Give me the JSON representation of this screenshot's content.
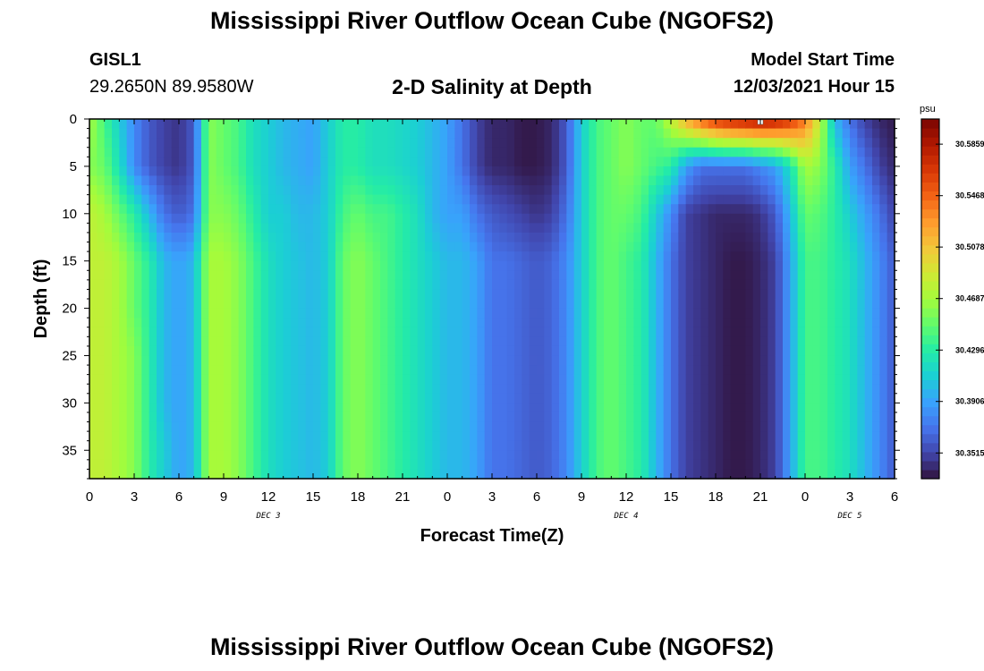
{
  "page": {
    "title_top": "Mississippi River Outflow Ocean Cube (NGOFS2)",
    "title_bottom": "Mississippi River Outflow Ocean Cube (NGOFS2)",
    "station_id": "GISL1",
    "station_coords": "29.2650N  89.9580W",
    "subtitle": "2-D Salinity at Depth",
    "model_start_label": "Model Start Time",
    "model_start_value": "12/03/2021 Hour 15"
  },
  "chart_data": {
    "type": "heatmap",
    "title": "2-D Salinity at Depth",
    "xlabel": "Forecast Time(Z)",
    "ylabel": "Depth (ft)",
    "colorbar_unit": "psu",
    "x_range_hours": [
      0,
      54
    ],
    "y_range_ft": [
      0,
      38
    ],
    "y_inverted": true,
    "x_ticks": [
      {
        "h": 0,
        "label": "0"
      },
      {
        "h": 3,
        "label": "3"
      },
      {
        "h": 6,
        "label": "6"
      },
      {
        "h": 9,
        "label": "9"
      },
      {
        "h": 12,
        "label": "12"
      },
      {
        "h": 15,
        "label": "15"
      },
      {
        "h": 18,
        "label": "18"
      },
      {
        "h": 21,
        "label": "21"
      },
      {
        "h": 24,
        "label": "0"
      },
      {
        "h": 27,
        "label": "3"
      },
      {
        "h": 30,
        "label": "6"
      },
      {
        "h": 33,
        "label": "9"
      },
      {
        "h": 36,
        "label": "12"
      },
      {
        "h": 39,
        "label": "15"
      },
      {
        "h": 42,
        "label": "18"
      },
      {
        "h": 45,
        "label": "21"
      },
      {
        "h": 48,
        "label": "0"
      },
      {
        "h": 51,
        "label": "3"
      },
      {
        "h": 54,
        "label": "6"
      }
    ],
    "y_ticks": [
      0,
      5,
      10,
      15,
      20,
      25,
      30,
      35
    ],
    "day_labels": [
      {
        "h": 12,
        "label": "DEC 3"
      },
      {
        "h": 36,
        "label": "DEC 4"
      },
      {
        "h": 51,
        "label": "DEC 5"
      }
    ],
    "colorbar_ticks": [
      30.5859,
      30.5468,
      30.5078,
      30.4687,
      30.4296,
      30.3906,
      30.3515
    ],
    "colorbar_range": [
      30.332,
      30.605
    ],
    "colormap": [
      "#30123b",
      "#4145ab",
      "#4675ed",
      "#39a2fc",
      "#1bcfd4",
      "#24eca6",
      "#61fc6c",
      "#a4fc3b",
      "#d1e834",
      "#f3c63a",
      "#fe9b2d",
      "#f36315",
      "#d93806",
      "#b11901",
      "#7a0402"
    ],
    "marker": {
      "h": 45,
      "depth": 0
    },
    "profile_hours": [
      0,
      1,
      2,
      3,
      4,
      5,
      6,
      7,
      8,
      9,
      10,
      11,
      12,
      13,
      14,
      15,
      16,
      17,
      18,
      19,
      20,
      21,
      22,
      23,
      24,
      25,
      26,
      27,
      28,
      29,
      30,
      31,
      32,
      33,
      34,
      35,
      36,
      37,
      38,
      39,
      40,
      41,
      42,
      43,
      44,
      45,
      46,
      47,
      48,
      49,
      50,
      51,
      52,
      53,
      54
    ],
    "profile_depths_ft": [
      0,
      5,
      10,
      15,
      20,
      25,
      30,
      35,
      38
    ],
    "salinity_psu": [
      [
        30.47,
        30.46,
        30.48,
        30.48,
        30.48,
        30.48,
        30.48,
        30.48,
        30.48
      ],
      [
        30.44,
        30.45,
        30.47,
        30.48,
        30.48,
        30.48,
        30.48,
        30.48,
        30.48
      ],
      [
        30.41,
        30.42,
        30.45,
        30.47,
        30.47,
        30.47,
        30.47,
        30.47,
        30.47
      ],
      [
        30.38,
        30.38,
        30.43,
        30.45,
        30.45,
        30.46,
        30.46,
        30.46,
        30.46
      ],
      [
        30.36,
        30.36,
        30.4,
        30.43,
        30.43,
        30.43,
        30.43,
        30.43,
        30.43
      ],
      [
        30.35,
        30.35,
        30.37,
        30.4,
        30.4,
        30.4,
        30.4,
        30.41,
        30.41
      ],
      [
        30.345,
        30.345,
        30.36,
        30.39,
        30.39,
        30.39,
        30.39,
        30.39,
        30.39
      ],
      [
        30.36,
        30.36,
        30.37,
        30.4,
        30.4,
        30.4,
        30.4,
        30.4,
        30.4
      ],
      [
        30.46,
        30.46,
        30.46,
        30.47,
        30.47,
        30.47,
        30.47,
        30.47,
        30.47
      ],
      [
        30.45,
        30.45,
        30.46,
        30.47,
        30.47,
        30.47,
        30.47,
        30.47,
        30.47
      ],
      [
        30.44,
        30.44,
        30.45,
        30.46,
        30.46,
        30.46,
        30.46,
        30.46,
        30.46
      ],
      [
        30.42,
        30.42,
        30.43,
        30.44,
        30.44,
        30.44,
        30.44,
        30.44,
        30.44
      ],
      [
        30.41,
        30.41,
        30.41,
        30.42,
        30.42,
        30.42,
        30.42,
        30.42,
        30.42
      ],
      [
        30.4,
        30.4,
        30.41,
        30.41,
        30.41,
        30.41,
        30.41,
        30.41,
        30.41
      ],
      [
        30.395,
        30.395,
        30.4,
        30.405,
        30.405,
        30.405,
        30.405,
        30.405,
        30.405
      ],
      [
        30.39,
        30.39,
        30.4,
        30.4,
        30.4,
        30.4,
        30.4,
        30.4,
        30.4
      ],
      [
        30.41,
        30.41,
        30.41,
        30.41,
        30.41,
        30.41,
        30.41,
        30.41,
        30.41
      ],
      [
        30.43,
        30.43,
        30.44,
        30.45,
        30.45,
        30.45,
        30.45,
        30.45,
        30.45
      ],
      [
        30.43,
        30.43,
        30.45,
        30.46,
        30.46,
        30.46,
        30.46,
        30.46,
        30.46
      ],
      [
        30.42,
        30.42,
        30.44,
        30.45,
        30.45,
        30.45,
        30.45,
        30.45,
        30.45
      ],
      [
        30.42,
        30.42,
        30.44,
        30.44,
        30.44,
        30.44,
        30.44,
        30.44,
        30.44
      ],
      [
        30.415,
        30.415,
        30.43,
        30.43,
        30.43,
        30.43,
        30.43,
        30.43,
        30.43
      ],
      [
        30.41,
        30.41,
        30.42,
        30.42,
        30.42,
        30.42,
        30.42,
        30.42,
        30.42
      ],
      [
        30.4,
        30.4,
        30.4,
        30.41,
        30.41,
        30.41,
        30.41,
        30.41,
        30.41
      ],
      [
        30.39,
        30.39,
        30.39,
        30.4,
        30.4,
        30.4,
        30.4,
        30.4,
        30.4
      ],
      [
        30.37,
        30.37,
        30.39,
        30.4,
        30.4,
        30.4,
        30.4,
        30.4,
        30.4
      ],
      [
        30.35,
        30.35,
        30.37,
        30.39,
        30.39,
        30.39,
        30.39,
        30.39,
        30.39
      ],
      [
        30.34,
        30.34,
        30.36,
        30.37,
        30.37,
        30.37,
        30.37,
        30.37,
        30.37
      ],
      [
        30.34,
        30.34,
        30.355,
        30.37,
        30.37,
        30.37,
        30.37,
        30.37,
        30.37
      ],
      [
        30.335,
        30.335,
        30.35,
        30.365,
        30.365,
        30.365,
        30.365,
        30.365,
        30.365
      ],
      [
        30.335,
        30.335,
        30.345,
        30.36,
        30.36,
        30.36,
        30.36,
        30.36,
        30.36
      ],
      [
        30.34,
        30.34,
        30.35,
        30.365,
        30.365,
        30.365,
        30.365,
        30.365,
        30.365
      ],
      [
        30.36,
        30.36,
        30.37,
        30.38,
        30.38,
        30.38,
        30.38,
        30.38,
        30.38
      ],
      [
        30.41,
        30.41,
        30.41,
        30.41,
        30.41,
        30.41,
        30.41,
        30.41,
        30.41
      ],
      [
        30.44,
        30.44,
        30.44,
        30.44,
        30.44,
        30.44,
        30.44,
        30.44,
        30.44
      ],
      [
        30.45,
        30.45,
        30.45,
        30.45,
        30.45,
        30.45,
        30.45,
        30.45,
        30.45
      ],
      [
        30.46,
        30.46,
        30.45,
        30.44,
        30.44,
        30.44,
        30.44,
        30.44,
        30.44
      ],
      [
        30.45,
        30.45,
        30.44,
        30.43,
        30.43,
        30.43,
        30.43,
        30.43,
        30.43
      ],
      [
        30.45,
        30.44,
        30.41,
        30.4,
        30.4,
        30.4,
        30.4,
        30.4,
        30.4
      ],
      [
        30.48,
        30.43,
        30.38,
        30.37,
        30.37,
        30.37,
        30.37,
        30.37,
        30.37
      ],
      [
        30.52,
        30.39,
        30.35,
        30.35,
        30.35,
        30.35,
        30.35,
        30.35,
        30.35
      ],
      [
        30.55,
        30.37,
        30.345,
        30.345,
        30.345,
        30.345,
        30.345,
        30.345,
        30.345
      ],
      [
        30.57,
        30.37,
        30.34,
        30.34,
        30.34,
        30.34,
        30.34,
        30.34,
        30.34
      ],
      [
        30.58,
        30.37,
        30.34,
        30.335,
        30.335,
        30.335,
        30.335,
        30.335,
        30.335
      ],
      [
        30.585,
        30.37,
        30.34,
        30.335,
        30.335,
        30.335,
        30.335,
        30.335,
        30.335
      ],
      [
        30.59,
        30.38,
        30.345,
        30.34,
        30.34,
        30.34,
        30.34,
        30.34,
        30.34
      ],
      [
        30.585,
        30.39,
        30.36,
        30.35,
        30.35,
        30.35,
        30.35,
        30.35,
        30.35
      ],
      [
        30.57,
        30.42,
        30.4,
        30.39,
        30.39,
        30.39,
        30.39,
        30.39,
        30.39
      ],
      [
        30.54,
        30.47,
        30.45,
        30.44,
        30.44,
        30.44,
        30.44,
        30.44,
        30.44
      ],
      [
        30.48,
        30.46,
        30.445,
        30.44,
        30.44,
        30.44,
        30.44,
        30.44,
        30.44
      ],
      [
        30.4,
        30.43,
        30.43,
        30.43,
        30.43,
        30.43,
        30.43,
        30.43,
        30.43
      ],
      [
        30.37,
        30.39,
        30.41,
        30.42,
        30.42,
        30.42,
        30.42,
        30.42,
        30.42
      ],
      [
        30.35,
        30.37,
        30.39,
        30.4,
        30.4,
        30.4,
        30.4,
        30.4,
        30.4
      ],
      [
        30.34,
        30.35,
        30.37,
        30.38,
        30.38,
        30.38,
        30.38,
        30.38,
        30.38
      ],
      [
        30.335,
        30.34,
        30.35,
        30.36,
        30.36,
        30.36,
        30.36,
        30.36,
        30.36
      ]
    ]
  }
}
